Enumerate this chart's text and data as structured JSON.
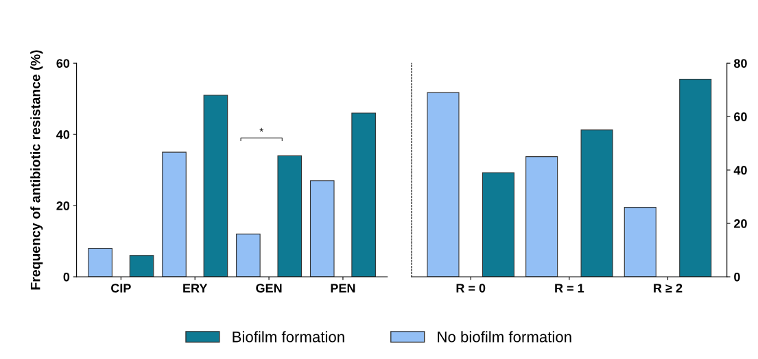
{
  "chart_data": [
    {
      "type": "bar",
      "ylabel": "Frequency of antibiotic resistance (%)",
      "categories": [
        "CIP",
        "ERY",
        "GEN",
        "PEN"
      ],
      "series": [
        {
          "name": "No biofilm formation",
          "color": "#93bff5",
          "values": [
            8,
            35,
            12,
            27
          ]
        },
        {
          "name": "Biofilm formation",
          "color": "#0e7a93",
          "values": [
            6,
            51,
            34,
            46
          ]
        }
      ],
      "ylim": [
        0,
        60
      ],
      "yticks": [
        0,
        20,
        40,
        60
      ],
      "grid": false,
      "legend": "bottom",
      "annotations": [
        "*"
      ]
    },
    {
      "type": "bar",
      "categories": [
        "R = 0",
        "R = 1",
        "R ≥ 2"
      ],
      "series": [
        {
          "color": "#93bff5",
          "values": [
            69,
            45,
            26
          ]
        },
        {
          "color": "#0e7a93",
          "values": [
            39,
            55,
            74
          ]
        }
      ],
      "ylim": [
        0,
        80
      ],
      "yticks": [
        0,
        20,
        40,
        60,
        80
      ],
      "grid": false
    }
  ]
}
